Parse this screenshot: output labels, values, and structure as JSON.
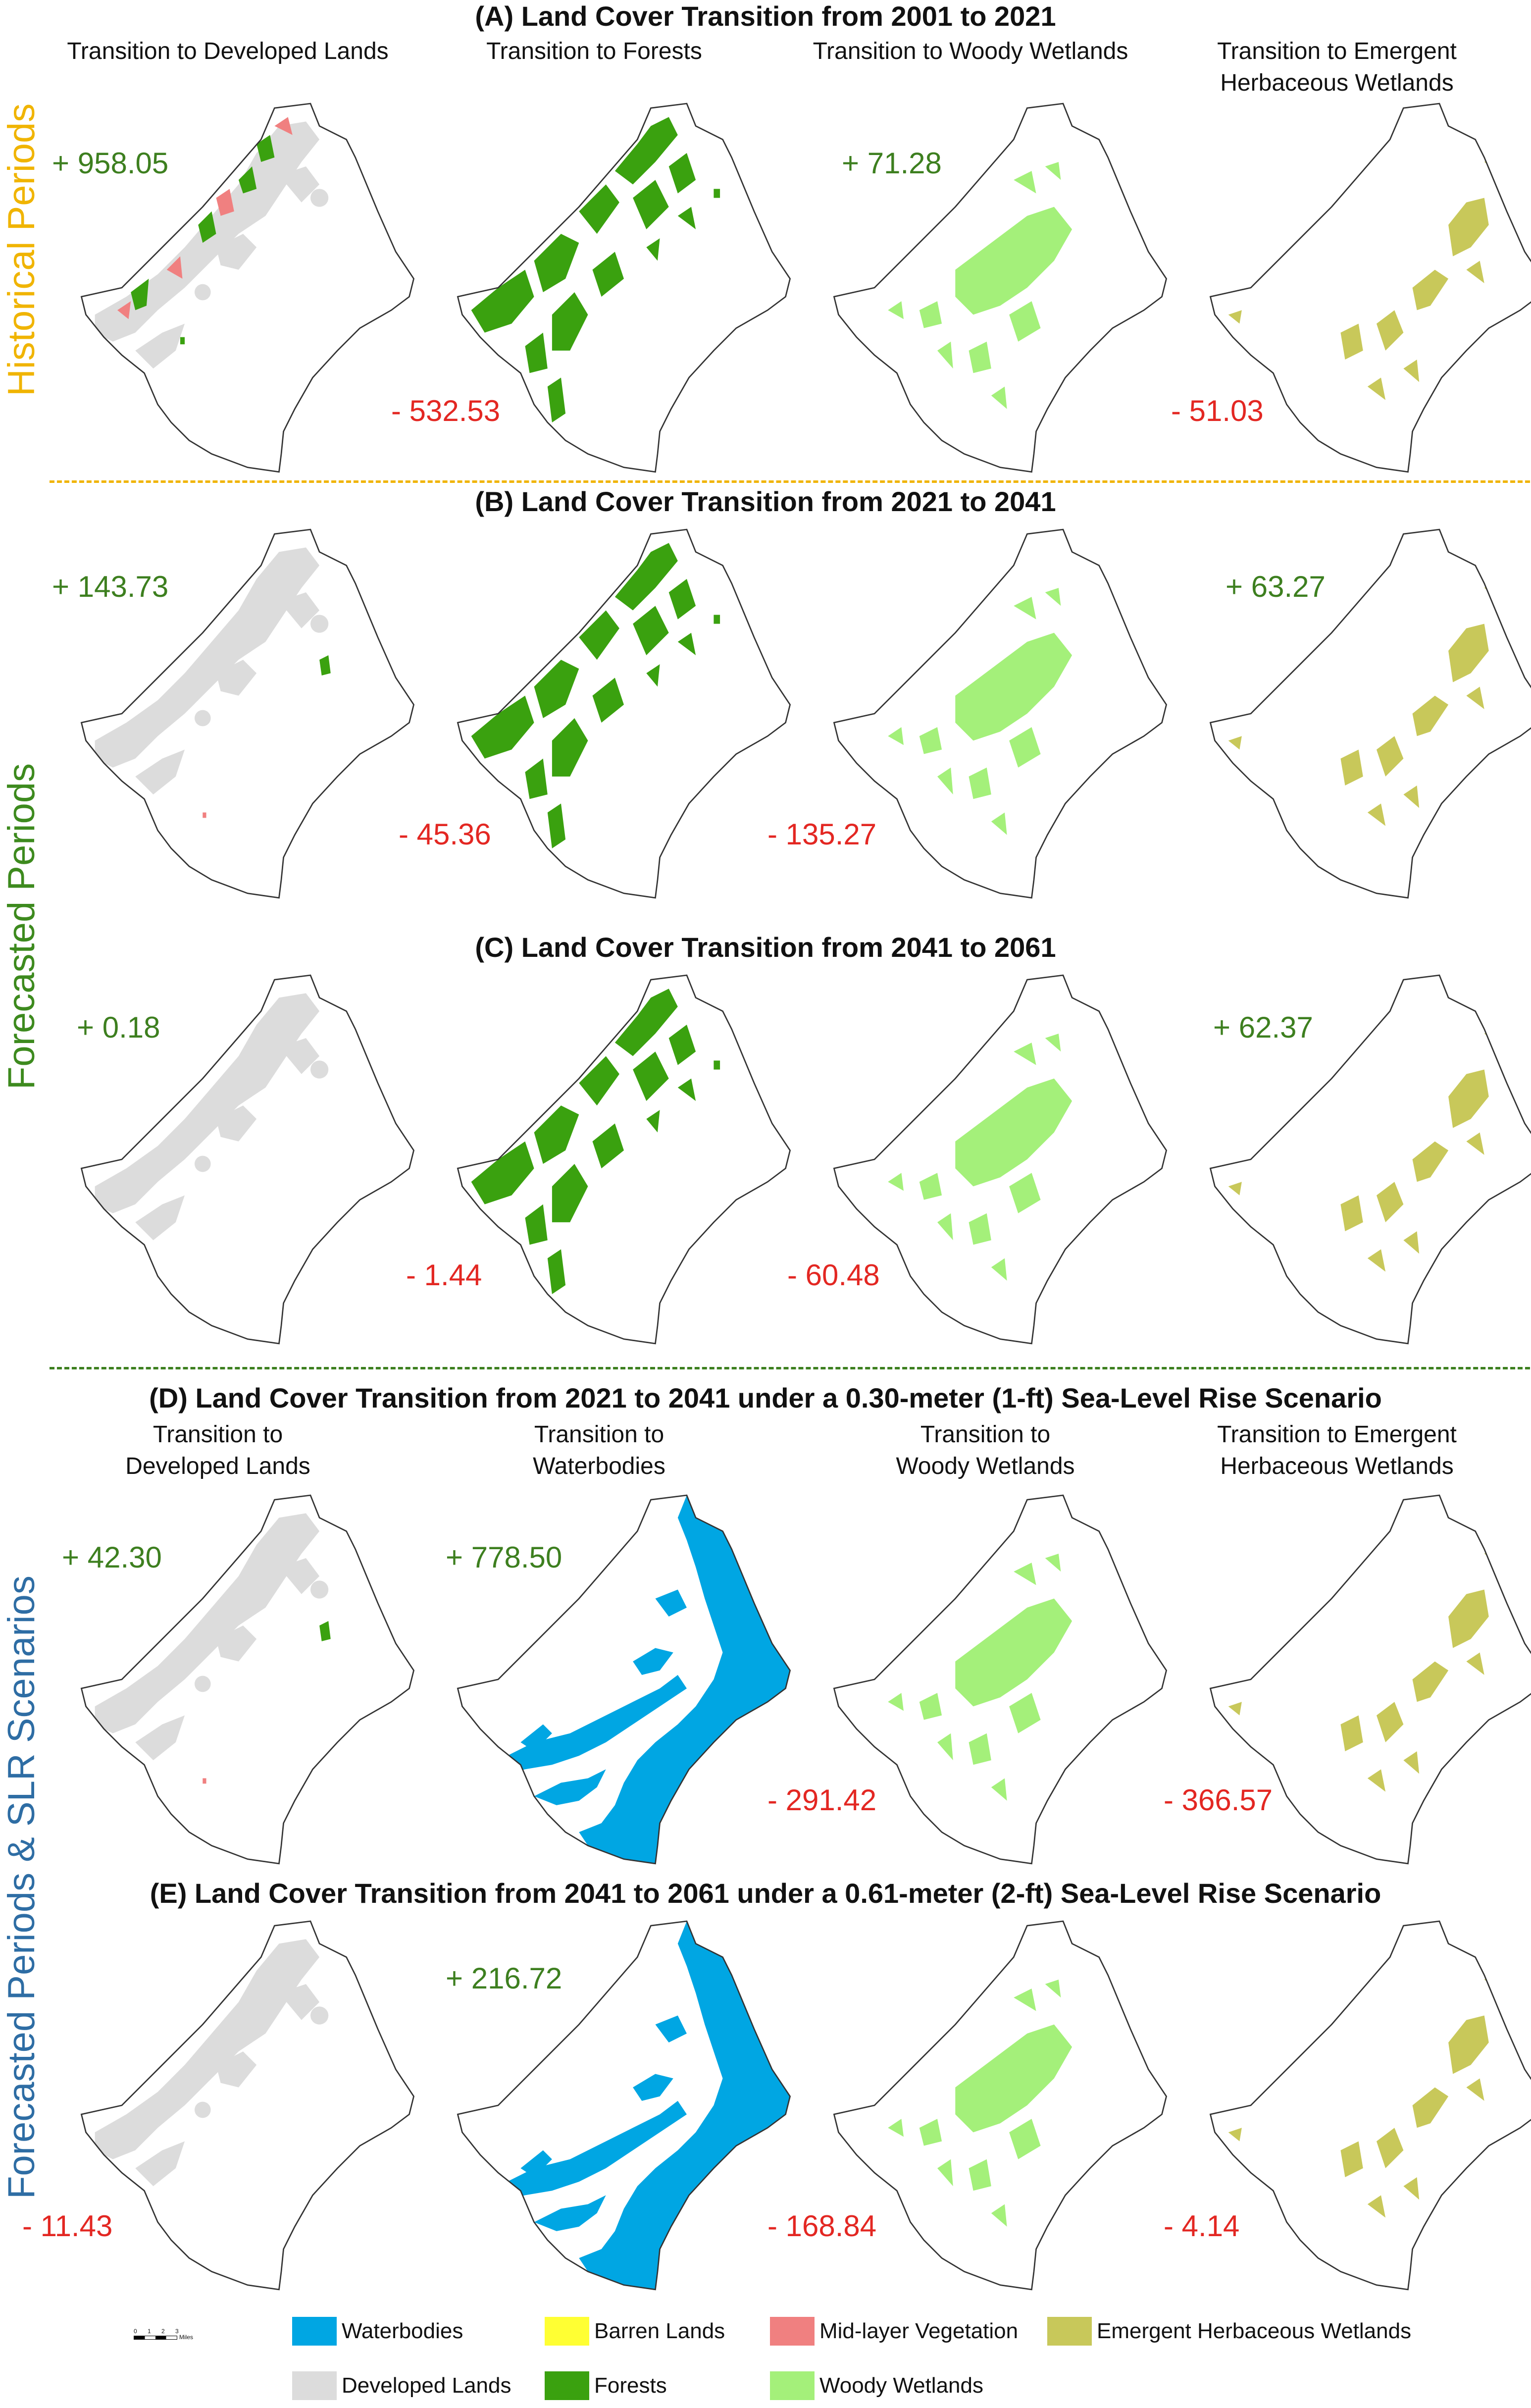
{
  "titles": {
    "a": "(A) Land Cover Transition from 2001 to 2021",
    "b": "(B) Land Cover Transition from 2021 to 2041",
    "c": "(C) Land Cover Transition from 2041 to 2061",
    "d": "(D) Land Cover Transition from 2021 to 2041 under a 0.30-meter (1-ft) Sea-Level Rise Scenario",
    "e": "(E) Land Cover Transition from 2041 to 2061 under a 0.61-meter (2-ft) Sea-Level Rise Scenario"
  },
  "column_headers": {
    "top": [
      "Transition to Developed Lands",
      "Transition to Forests",
      "Transition to Woody Wetlands",
      "Transition to Emergent Herbaceous Wetlands"
    ],
    "slr": [
      "Transition to Developed Lands",
      "Transition to Waterbodies",
      "Transition to Woody Wetlands",
      "Transition to Emergent Herbaceous Wetlands"
    ]
  },
  "side_labels": {
    "historical": "Historical Periods",
    "forecasted": "Forecasted Periods",
    "slr": "Forecasted Periods & SLR Scenarios"
  },
  "colors": {
    "waterbodies": "#00a6e3",
    "barren": "#ffff33",
    "midlayer": "#f08080",
    "emergent": "#c8c85a",
    "developed": "#dcdcdc",
    "forests": "#3aa10f",
    "woody": "#a4f07a",
    "historical_label": "#f0b400",
    "forecast_label": "#3d8a1e",
    "slr_label": "#2e6da4",
    "positive": "#3d7f1f",
    "negative": "#e32722"
  },
  "panels": {
    "a": {
      "developed": "+ 958.05",
      "forests": "- 532.53",
      "woody": "+ 71.28",
      "emergent": "- 51.03"
    },
    "b": {
      "developed": "+ 143.73",
      "forests": "- 45.36",
      "woody": "- 135.27",
      "emergent": "+ 63.27"
    },
    "c": {
      "developed": "+ 0.18",
      "forests": "- 1.44",
      "woody": "- 60.48",
      "emergent": "+ 62.37"
    },
    "d": {
      "developed": "+ 42.30",
      "waterbodies": "+ 778.50",
      "woody": "- 291.42",
      "emergent": "- 366.57"
    },
    "e": {
      "developed": "- 11.43",
      "waterbodies": "+ 216.72",
      "woody": "- 168.84",
      "emergent": "- 4.14"
    }
  },
  "legend": {
    "waterbodies": "Waterbodies",
    "barren": "Barren Lands",
    "midlayer": "Mid-layer Vegetation",
    "emergent": "Emergent Herbaceous Wetlands",
    "developed": "Developed Lands",
    "forests": "Forests",
    "woody": "Woody Wetlands"
  },
  "scale_bar": {
    "ticks": [
      "0",
      "1",
      "2",
      "3"
    ],
    "unit": "Miles"
  }
}
